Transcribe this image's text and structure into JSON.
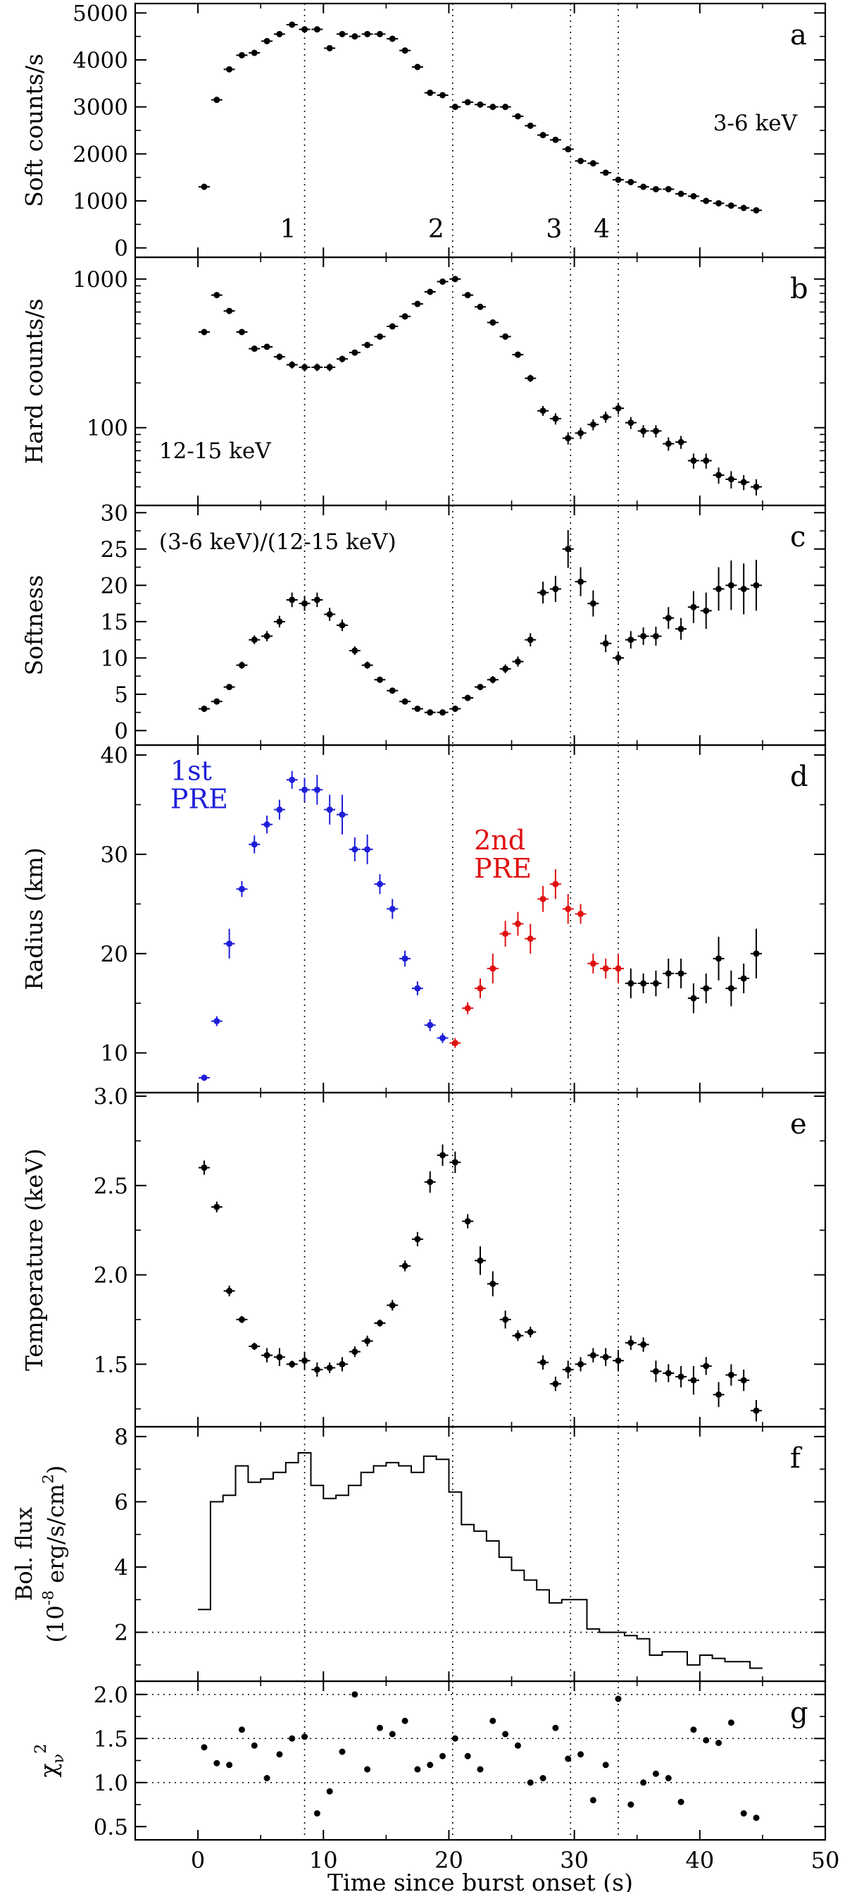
{
  "chart_data": {
    "type": "multi-panel",
    "xlabel": "Time since burst onset (s)",
    "xlim": [
      -5,
      50
    ],
    "xticks": [
      0,
      10,
      20,
      30,
      40,
      50
    ],
    "xtick_labels": [
      "0",
      "10",
      "20",
      "30",
      "40",
      "50"
    ],
    "vlines": [
      8.5,
      20.3,
      29.7,
      33.5
    ],
    "vline_labels": [
      "1",
      "2",
      "3",
      "4"
    ],
    "panels": [
      {
        "id": "a",
        "letter": "a",
        "ylabel": "Soft counts/s",
        "annotation": "3-6 keV",
        "scale": "linear",
        "ylim": [
          -200,
          5200
        ],
        "yticks": [
          0,
          1000,
          2000,
          3000,
          4000,
          5000
        ],
        "ytick_labels": [
          "0",
          "1000",
          "2000",
          "3000",
          "4000",
          "5000"
        ],
        "style": "points",
        "x": [
          0.5,
          1.5,
          2.5,
          3.5,
          4.5,
          5.5,
          6.5,
          7.5,
          8.5,
          9.5,
          10.5,
          11.5,
          12.5,
          13.5,
          14.5,
          15.5,
          16.5,
          17.5,
          18.5,
          19.5,
          20.5,
          21.5,
          22.5,
          23.5,
          24.5,
          25.5,
          26.5,
          27.5,
          28.5,
          29.5,
          30.5,
          31.5,
          32.5,
          33.5,
          34.5,
          35.5,
          36.5,
          37.5,
          38.5,
          39.5,
          40.5,
          41.5,
          42.5,
          43.5,
          44.5
        ],
        "y": [
          1300,
          3150,
          3800,
          4100,
          4150,
          4400,
          4550,
          4750,
          4650,
          4650,
          4250,
          4550,
          4500,
          4550,
          4550,
          4450,
          4200,
          3850,
          3300,
          3250,
          3000,
          3100,
          3050,
          3000,
          3000,
          2800,
          2600,
          2400,
          2300,
          2100,
          1850,
          1800,
          1600,
          1450,
          1400,
          1300,
          1250,
          1250,
          1150,
          1100,
          1000,
          950,
          900,
          850,
          800
        ],
        "yerr": [
          30,
          40,
          40,
          40,
          40,
          40,
          40,
          40,
          40,
          40,
          40,
          40,
          40,
          40,
          40,
          40,
          40,
          40,
          40,
          40,
          40,
          40,
          40,
          40,
          40,
          40,
          40,
          40,
          40,
          40,
          40,
          40,
          40,
          40,
          40,
          40,
          40,
          40,
          40,
          40,
          40,
          40,
          40,
          40,
          40
        ]
      },
      {
        "id": "b",
        "letter": "b",
        "ylabel": "Hard counts/s",
        "annotation": "12-15 keV",
        "scale": "log",
        "ylim": [
          30,
          1400
        ],
        "yticks": [
          100,
          1000
        ],
        "ytick_labels": [
          "100",
          "1000"
        ],
        "style": "points",
        "x": [
          0.5,
          1.5,
          2.5,
          3.5,
          4.5,
          5.5,
          6.5,
          7.5,
          8.5,
          9.5,
          10.5,
          11.5,
          12.5,
          13.5,
          14.5,
          15.5,
          16.5,
          17.5,
          18.5,
          19.5,
          20.5,
          21.5,
          22.5,
          23.5,
          24.5,
          25.5,
          26.5,
          27.5,
          28.5,
          29.5,
          30.5,
          31.5,
          32.5,
          33.5,
          34.5,
          35.5,
          36.5,
          37.5,
          38.5,
          39.5,
          40.5,
          41.5,
          42.5,
          43.5,
          44.5
        ],
        "y": [
          440,
          780,
          610,
          440,
          340,
          350,
          300,
          265,
          255,
          255,
          255,
          290,
          320,
          360,
          410,
          480,
          560,
          680,
          820,
          960,
          1000,
          780,
          650,
          510,
          410,
          310,
          215,
          130,
          115,
          85,
          92,
          105,
          118,
          135,
          108,
          95,
          95,
          78,
          80,
          60,
          60,
          48,
          45,
          43,
          40
        ],
        "yerr": [
          20,
          30,
          25,
          20,
          15,
          15,
          15,
          15,
          15,
          15,
          15,
          15,
          15,
          15,
          15,
          20,
          25,
          30,
          35,
          40,
          40,
          35,
          30,
          25,
          20,
          15,
          12,
          10,
          10,
          8,
          8,
          9,
          10,
          12,
          10,
          9,
          9,
          8,
          8,
          7,
          7,
          6,
          6,
          5,
          5
        ]
      },
      {
        "id": "c",
        "letter": "c",
        "ylabel": "Softness",
        "annotation": "(3-6 keV)/(12-15 keV)",
        "scale": "linear",
        "ylim": [
          -2,
          31
        ],
        "yticks": [
          0,
          5,
          10,
          15,
          20,
          25,
          30
        ],
        "ytick_labels": [
          "0",
          "5",
          "10",
          "15",
          "20",
          "25",
          "30"
        ],
        "style": "points",
        "x": [
          0.5,
          1.5,
          2.5,
          3.5,
          4.5,
          5.5,
          6.5,
          7.5,
          8.5,
          9.5,
          10.5,
          11.5,
          12.5,
          13.5,
          14.5,
          15.5,
          16.5,
          17.5,
          18.5,
          19.5,
          20.5,
          21.5,
          22.5,
          23.5,
          24.5,
          25.5,
          26.5,
          27.5,
          28.5,
          29.5,
          30.5,
          31.5,
          32.5,
          33.5,
          34.5,
          35.5,
          36.5,
          37.5,
          38.5,
          39.5,
          40.5,
          41.5,
          42.5,
          43.5,
          44.5
        ],
        "y": [
          3,
          4,
          6,
          9,
          12.5,
          13,
          15,
          18,
          17.5,
          18,
          16,
          14.5,
          11,
          9,
          7,
          5.5,
          4,
          3,
          2.5,
          2.5,
          3,
          4.5,
          6,
          7,
          8.5,
          9.5,
          12.5,
          19,
          19.5,
          25,
          20.5,
          17.5,
          12,
          10,
          12.5,
          13,
          13,
          15.5,
          14,
          17,
          16.5,
          19.5,
          20,
          19.5,
          20
        ],
        "yerr": [
          0.3,
          0.3,
          0.4,
          0.5,
          0.6,
          0.7,
          0.8,
          1,
          1,
          1,
          0.9,
          0.8,
          0.6,
          0.5,
          0.4,
          0.3,
          0.3,
          0.3,
          0.3,
          0.3,
          0.3,
          0.4,
          0.4,
          0.5,
          0.6,
          0.7,
          0.9,
          1.5,
          1.8,
          2.6,
          2,
          1.8,
          1.2,
          0.9,
          1.2,
          1.2,
          1.3,
          1.5,
          1.5,
          2.2,
          2.5,
          3,
          3.4,
          3.5,
          3.5
        ]
      },
      {
        "id": "d",
        "letter": "d",
        "ylabel": "Radius (km)",
        "scale": "linear",
        "ylim": [
          6,
          41
        ],
        "yticks": [
          10,
          20,
          30,
          40
        ],
        "ytick_labels": [
          "10",
          "20",
          "30",
          "40"
        ],
        "style": "points",
        "labels": [
          {
            "lines": [
              "1st",
              "PRE"
            ],
            "x": -2.2,
            "y": 37.5,
            "color": "#1f1fd9"
          },
          {
            "lines": [
              "2nd",
              "PRE"
            ],
            "x": 22.0,
            "y": 30.5,
            "color": "#e01010"
          }
        ],
        "x": [
          0.5,
          1.5,
          2.5,
          3.5,
          4.5,
          5.5,
          6.5,
          7.5,
          8.5,
          9.5,
          10.5,
          11.5,
          12.5,
          13.5,
          14.5,
          15.5,
          16.5,
          17.5,
          18.5,
          19.5,
          20.5,
          21.5,
          22.5,
          23.5,
          24.5,
          25.5,
          26.5,
          27.5,
          28.5,
          29.5,
          30.5,
          31.5,
          32.5,
          33.5,
          34.5,
          35.5,
          36.5,
          37.5,
          38.5,
          39.5,
          40.5,
          41.5,
          42.5,
          43.5,
          44.5
        ],
        "y": [
          7.5,
          13.2,
          21,
          26.5,
          31,
          33,
          34.5,
          37.5,
          36.5,
          36.5,
          34.5,
          34,
          30.5,
          30.5,
          27,
          24.5,
          19.5,
          16.5,
          12.8,
          11.5,
          11,
          14.5,
          16.5,
          18.5,
          22,
          23,
          21.5,
          25.5,
          27,
          24.5,
          24,
          19,
          18.5,
          18.5,
          17,
          17,
          17,
          18,
          18,
          15.5,
          16.5,
          19.5,
          16.5,
          17.5,
          20
        ],
        "yerr": [
          0.3,
          0.5,
          1.5,
          0.8,
          0.9,
          0.9,
          1,
          0.9,
          1.2,
          1.5,
          1.5,
          2,
          1.2,
          1.5,
          1,
          1,
          0.8,
          0.7,
          0.6,
          0.5,
          0.5,
          0.6,
          1,
          1.5,
          1.3,
          1.2,
          1.5,
          1.3,
          1.5,
          1.5,
          1,
          1,
          1,
          1.5,
          1.5,
          1,
          1.3,
          1.5,
          1.5,
          1.5,
          1.5,
          2.2,
          1.8,
          1.5,
          2.5
        ],
        "colors": [
          "#1f1fd9",
          "#1f1fd9",
          "#1f1fd9",
          "#1f1fd9",
          "#1f1fd9",
          "#1f1fd9",
          "#1f1fd9",
          "#1f1fd9",
          "#1f1fd9",
          "#1f1fd9",
          "#1f1fd9",
          "#1f1fd9",
          "#1f1fd9",
          "#1f1fd9",
          "#1f1fd9",
          "#1f1fd9",
          "#1f1fd9",
          "#1f1fd9",
          "#1f1fd9",
          "#1f1fd9",
          "#e01010",
          "#e01010",
          "#e01010",
          "#e01010",
          "#e01010",
          "#e01010",
          "#e01010",
          "#e01010",
          "#e01010",
          "#e01010",
          "#e01010",
          "#e01010",
          "#e01010",
          "#e01010",
          "#000000",
          "#000000",
          "#000000",
          "#000000",
          "#000000",
          "#000000",
          "#000000",
          "#000000",
          "#000000",
          "#000000",
          "#000000"
        ]
      },
      {
        "id": "e",
        "letter": "e",
        "ylabel": "Temperature (keV)",
        "scale": "linear",
        "ylim": [
          1.15,
          3.02
        ],
        "yticks": [
          1.5,
          2.0,
          2.5,
          3.0
        ],
        "ytick_labels": [
          "1.5",
          "2.0",
          "2.5",
          "3.0"
        ],
        "style": "points",
        "x": [
          0.5,
          1.5,
          2.5,
          3.5,
          4.5,
          5.5,
          6.5,
          7.5,
          8.5,
          9.5,
          10.5,
          11.5,
          12.5,
          13.5,
          14.5,
          15.5,
          16.5,
          17.5,
          18.5,
          19.5,
          20.5,
          21.5,
          22.5,
          23.5,
          24.5,
          25.5,
          26.5,
          27.5,
          28.5,
          29.5,
          30.5,
          31.5,
          32.5,
          33.5,
          34.5,
          35.5,
          36.5,
          37.5,
          38.5,
          39.5,
          40.5,
          41.5,
          42.5,
          43.5,
          44.5
        ],
        "y": [
          2.6,
          2.38,
          1.91,
          1.75,
          1.6,
          1.55,
          1.54,
          1.5,
          1.52,
          1.47,
          1.48,
          1.5,
          1.57,
          1.63,
          1.73,
          1.83,
          2.05,
          2.2,
          2.52,
          2.67,
          2.63,
          2.3,
          2.08,
          1.95,
          1.75,
          1.66,
          1.68,
          1.51,
          1.39,
          1.47,
          1.5,
          1.55,
          1.54,
          1.52,
          1.62,
          1.61,
          1.46,
          1.45,
          1.43,
          1.41,
          1.49,
          1.33,
          1.44,
          1.41,
          1.24
        ],
        "yerr": [
          0.04,
          0.03,
          0.03,
          0.02,
          0.02,
          0.04,
          0.05,
          0.02,
          0.05,
          0.04,
          0.03,
          0.04,
          0.03,
          0.03,
          0.02,
          0.03,
          0.03,
          0.04,
          0.06,
          0.06,
          0.06,
          0.04,
          0.08,
          0.07,
          0.05,
          0.03,
          0.03,
          0.04,
          0.04,
          0.05,
          0.04,
          0.04,
          0.05,
          0.06,
          0.04,
          0.04,
          0.06,
          0.05,
          0.06,
          0.08,
          0.05,
          0.07,
          0.06,
          0.06,
          0.06
        ]
      },
      {
        "id": "f",
        "letter": "f",
        "ylabel": "Bol. flux",
        "ylabel2": "(10<sup>-8</sup> erg/s/cm<sup>2</sup>)",
        "scale": "linear",
        "ylim": [
          0.5,
          8.3
        ],
        "yticks": [
          2,
          4,
          6,
          8
        ],
        "ytick_labels": [
          "2",
          "4",
          "6",
          "8"
        ],
        "style": "step",
        "hline": 2,
        "x": [
          0.5,
          1.5,
          2.5,
          3.5,
          4.5,
          5.5,
          6.5,
          7.5,
          8.5,
          9.5,
          10.5,
          11.5,
          12.5,
          13.5,
          14.5,
          15.5,
          16.5,
          17.5,
          18.5,
          19.5,
          20.5,
          21.5,
          22.5,
          23.5,
          24.5,
          25.5,
          26.5,
          27.5,
          28.5,
          29.5,
          30.5,
          31.5,
          32.5,
          33.5,
          34.5,
          35.5,
          36.5,
          37.5,
          38.5,
          39.5,
          40.5,
          41.5,
          42.5,
          43.5,
          44.5
        ],
        "y": [
          2.7,
          6.0,
          6.2,
          7.1,
          6.6,
          6.7,
          6.9,
          7.2,
          7.5,
          6.5,
          6.1,
          6.2,
          6.5,
          6.9,
          7.1,
          7.2,
          7.1,
          6.9,
          7.4,
          7.3,
          6.3,
          5.3,
          5.1,
          4.8,
          4.3,
          3.9,
          3.6,
          3.3,
          2.9,
          3.0,
          3.0,
          2.1,
          2.0,
          2.0,
          1.9,
          1.8,
          1.3,
          1.4,
          1.4,
          1.0,
          1.3,
          1.2,
          1.1,
          1.1,
          0.9
        ]
      },
      {
        "id": "g",
        "letter": "g",
        "ylabel": "χ<sub>ν</sub><sup>2</sup>",
        "scale": "linear",
        "ylim": [
          0.35,
          2.15
        ],
        "yticks": [
          0.5,
          1.0,
          1.5,
          2.0
        ],
        "ytick_labels": [
          "0.5",
          "1.0",
          "1.5",
          "2.0"
        ],
        "style": "dots",
        "hlines": [
          1.0,
          1.5,
          2.0
        ],
        "x": [
          0.5,
          1.5,
          2.5,
          3.5,
          4.5,
          5.5,
          6.5,
          7.5,
          8.5,
          9.5,
          10.5,
          11.5,
          12.5,
          13.5,
          14.5,
          15.5,
          16.5,
          17.5,
          18.5,
          19.5,
          20.5,
          21.5,
          22.5,
          23.5,
          24.5,
          25.5,
          26.5,
          27.5,
          28.5,
          29.5,
          30.5,
          31.5,
          32.5,
          33.5,
          34.5,
          35.5,
          36.5,
          37.5,
          38.5,
          39.5,
          40.5,
          41.5,
          42.5,
          43.5,
          44.5
        ],
        "y": [
          1.4,
          1.22,
          1.2,
          1.6,
          1.42,
          1.05,
          1.32,
          1.5,
          1.52,
          0.65,
          0.9,
          1.35,
          2.0,
          1.15,
          1.62,
          1.55,
          1.7,
          1.15,
          1.2,
          1.3,
          1.5,
          1.3,
          1.15,
          1.7,
          1.55,
          1.42,
          1.0,
          1.05,
          1.62,
          1.27,
          1.32,
          0.8,
          1.2,
          1.95,
          0.75,
          1.0,
          1.1,
          1.05,
          0.78,
          1.6,
          1.48,
          1.45,
          1.68,
          0.65,
          0.6
        ]
      }
    ]
  }
}
